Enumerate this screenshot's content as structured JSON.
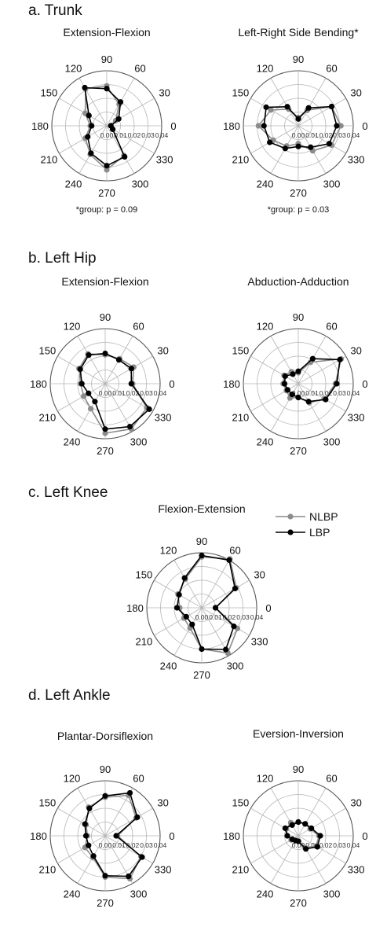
{
  "sections": [
    {
      "title": "a. Trunk"
    },
    {
      "title": "b. Left Hip"
    },
    {
      "title": "c. Left Knee"
    },
    {
      "title": "d. Left Ankle"
    }
  ],
  "legend": {
    "position": "right of knee panel",
    "entries": [
      {
        "name": "NLBP",
        "color": "#8c8c8c"
      },
      {
        "name": "LBP",
        "color": "#000000"
      }
    ]
  },
  "chart_data": [
    {
      "type": "polar-line",
      "section": "a. Trunk",
      "title": "Extension-Flexion",
      "note": "*group: p = 0.09",
      "angle_ticks": [
        0,
        30,
        60,
        90,
        120,
        150,
        180,
        210,
        240,
        270,
        300,
        330
      ],
      "radial_ticks": [
        "0.00",
        "0.01",
        "0.02",
        "0.03",
        "0.04"
      ],
      "rlim": [
        0,
        0.04
      ],
      "grid": true,
      "series": [
        {
          "name": "NLBP",
          "angles": [
            0,
            30,
            60,
            90,
            120,
            150,
            180,
            210,
            240,
            270,
            300,
            330
          ],
          "values": [
            0.003,
            0.0075,
            0.018,
            0.029,
            0.031,
            0.018,
            0.012,
            0.018,
            0.024,
            0.032,
            0.025,
            0.005
          ]
        },
        {
          "name": "LBP",
          "angles": [
            0,
            30,
            60,
            90,
            120,
            150,
            180,
            210,
            240,
            270,
            300,
            330
          ],
          "values": [
            0.003,
            0.01,
            0.02,
            0.027,
            0.032,
            0.015,
            0.011,
            0.016,
            0.023,
            0.029,
            0.026,
            0.005
          ]
        }
      ]
    },
    {
      "type": "polar-line",
      "section": "a. Trunk",
      "title": "Left-Right Side Bending*",
      "note": "*group: p = 0.03",
      "angle_ticks": [
        0,
        30,
        60,
        90,
        120,
        150,
        180,
        210,
        240,
        270,
        300,
        330
      ],
      "radial_ticks": [
        "0.00",
        "0.01",
        "0.02",
        "0.03",
        "0.04"
      ],
      "rlim": [
        0,
        0.04
      ],
      "grid": true,
      "series": [
        {
          "name": "NLBP",
          "angles": [
            0,
            30,
            60,
            90,
            120,
            150,
            180,
            210,
            240,
            270,
            300,
            330
          ],
          "values": [
            0.031,
            0.028,
            0.013,
            0.006,
            0.014,
            0.023,
            0.029,
            0.021,
            0.017,
            0.013,
            0.021,
            0.028
          ]
        },
        {
          "name": "LBP",
          "angles": [
            0,
            30,
            60,
            90,
            120,
            150,
            180,
            210,
            240,
            270,
            300,
            330
          ],
          "values": [
            0.028,
            0.028,
            0.015,
            0.005,
            0.016,
            0.027,
            0.025,
            0.024,
            0.019,
            0.015,
            0.018,
            0.026
          ]
        }
      ]
    },
    {
      "type": "polar-line",
      "section": "b. Left Hip",
      "title": "Extension-Flexion",
      "angle_ticks": [
        0,
        30,
        60,
        90,
        120,
        150,
        180,
        210,
        240,
        270,
        300,
        330
      ],
      "radial_ticks": [
        "0.00",
        "0.01",
        "0.02",
        "0.03",
        "0.04"
      ],
      "rlim": [
        0,
        0.04
      ],
      "grid": true,
      "series": [
        {
          "name": "NLBP",
          "angles": [
            0,
            30,
            60,
            90,
            120,
            150,
            180,
            210,
            240,
            270,
            300,
            330
          ],
          "values": [
            0.02,
            0.024,
            0.021,
            0.021,
            0.025,
            0.022,
            0.018,
            0.018,
            0.021,
            0.036,
            0.038,
            0.035
          ]
        },
        {
          "name": "LBP",
          "angles": [
            0,
            30,
            60,
            90,
            120,
            150,
            180,
            210,
            240,
            270,
            300,
            330
          ],
          "values": [
            0.019,
            0.022,
            0.02,
            0.022,
            0.024,
            0.021,
            0.017,
            0.014,
            0.015,
            0.033,
            0.036,
            0.037
          ]
        }
      ]
    },
    {
      "type": "polar-line",
      "section": "b. Left Hip",
      "title": "Abduction-Adduction",
      "angle_ticks": [
        0,
        30,
        60,
        90,
        120,
        150,
        180,
        210,
        240,
        270,
        300,
        330
      ],
      "radial_ticks": [
        "0.00",
        "0.01",
        "0.02",
        "0.03",
        "0.04"
      ],
      "rlim": [
        0,
        0.04
      ],
      "grid": true,
      "series": [
        {
          "name": "NLBP",
          "angles": [
            0,
            30,
            60,
            90,
            120,
            150,
            180,
            210,
            240,
            270,
            300,
            330
          ],
          "values": [
            0.027,
            0.036,
            0.018,
            0.008,
            0.01,
            0.012,
            0.011,
            0.01,
            0.012,
            0.01,
            0.016,
            0.022
          ]
        },
        {
          "name": "LBP",
          "angles": [
            0,
            30,
            60,
            90,
            120,
            150,
            180,
            210,
            240,
            270,
            300,
            330
          ],
          "values": [
            0.028,
            0.035,
            0.021,
            0.009,
            0.008,
            0.011,
            0.01,
            0.009,
            0.009,
            0.01,
            0.015,
            0.023
          ]
        }
      ]
    },
    {
      "type": "polar-line",
      "section": "c. Left Knee",
      "title": "Flexion-Extension",
      "angle_ticks": [
        0,
        30,
        60,
        90,
        120,
        150,
        180,
        210,
        240,
        270,
        300,
        330
      ],
      "radial_ticks": [
        "0.00",
        "0.01",
        "0.02",
        "0.03",
        "0.04"
      ],
      "rlim": [
        0,
        0.04
      ],
      "grid": true,
      "series": [
        {
          "name": "NLBP",
          "angles": [
            0,
            30,
            60,
            90,
            120,
            150,
            180,
            210,
            240,
            270,
            300,
            330
          ],
          "values": [
            0.01,
            0.029,
            0.041,
            0.037,
            0.024,
            0.02,
            0.016,
            0.015,
            0.017,
            0.03,
            0.038,
            0.03
          ]
        },
        {
          "name": "LBP",
          "angles": [
            0,
            30,
            60,
            90,
            120,
            150,
            180,
            210,
            240,
            270,
            300,
            330
          ],
          "values": [
            0.01,
            0.028,
            0.04,
            0.038,
            0.025,
            0.019,
            0.018,
            0.013,
            0.014,
            0.03,
            0.035,
            0.027
          ]
        }
      ]
    },
    {
      "type": "polar-line",
      "section": "d. Left Ankle",
      "title": "Plantar-Dorsiflexion",
      "angle_ticks": [
        0,
        30,
        60,
        90,
        120,
        150,
        180,
        210,
        240,
        270,
        300,
        330
      ],
      "radial_ticks": [
        "0.00",
        "0.01",
        "0.02",
        "0.03",
        "0.04"
      ],
      "rlim": [
        0,
        0.04
      ],
      "grid": true,
      "series": [
        {
          "name": "NLBP",
          "angles": [
            0,
            30,
            60,
            90,
            120,
            150,
            180,
            210,
            240,
            270,
            300,
            330
          ],
          "values": [
            0.009,
            0.026,
            0.034,
            0.028,
            0.024,
            0.016,
            0.013,
            0.017,
            0.018,
            0.03,
            0.036,
            0.03
          ]
        },
        {
          "name": "LBP",
          "angles": [
            0,
            30,
            60,
            90,
            120,
            150,
            180,
            210,
            240,
            270,
            300,
            330
          ],
          "values": [
            0.008,
            0.027,
            0.036,
            0.029,
            0.023,
            0.017,
            0.014,
            0.014,
            0.017,
            0.029,
            0.034,
            0.031
          ]
        }
      ]
    },
    {
      "type": "polar-line",
      "section": "d. Left Ankle",
      "title": "Eversion-Inversion",
      "angle_ticks": [
        0,
        30,
        60,
        90,
        120,
        150,
        180,
        210,
        240,
        270,
        300,
        330
      ],
      "radial_ticks": [
        "0.00",
        "0.01",
        "0.02",
        "0.03",
        "0.04"
      ],
      "rlim": [
        0,
        0.04
      ],
      "grid": true,
      "series": [
        {
          "name": "NLBP",
          "angles": [
            0,
            30,
            60,
            90,
            120,
            150,
            180,
            210,
            240,
            270,
            300,
            330
          ],
          "values": [
            0.015,
            0.01,
            0.01,
            0.01,
            0.011,
            0.01,
            0.008,
            0.006,
            0.004,
            0.004,
            0.01,
            0.015
          ]
        },
        {
          "name": "LBP",
          "angles": [
            0,
            30,
            60,
            90,
            120,
            150,
            180,
            210,
            240,
            270,
            300,
            330
          ],
          "values": [
            0.016,
            0.011,
            0.01,
            0.01,
            0.009,
            0.011,
            0.008,
            0.005,
            0.004,
            0.004,
            0.011,
            0.016
          ]
        }
      ]
    }
  ]
}
